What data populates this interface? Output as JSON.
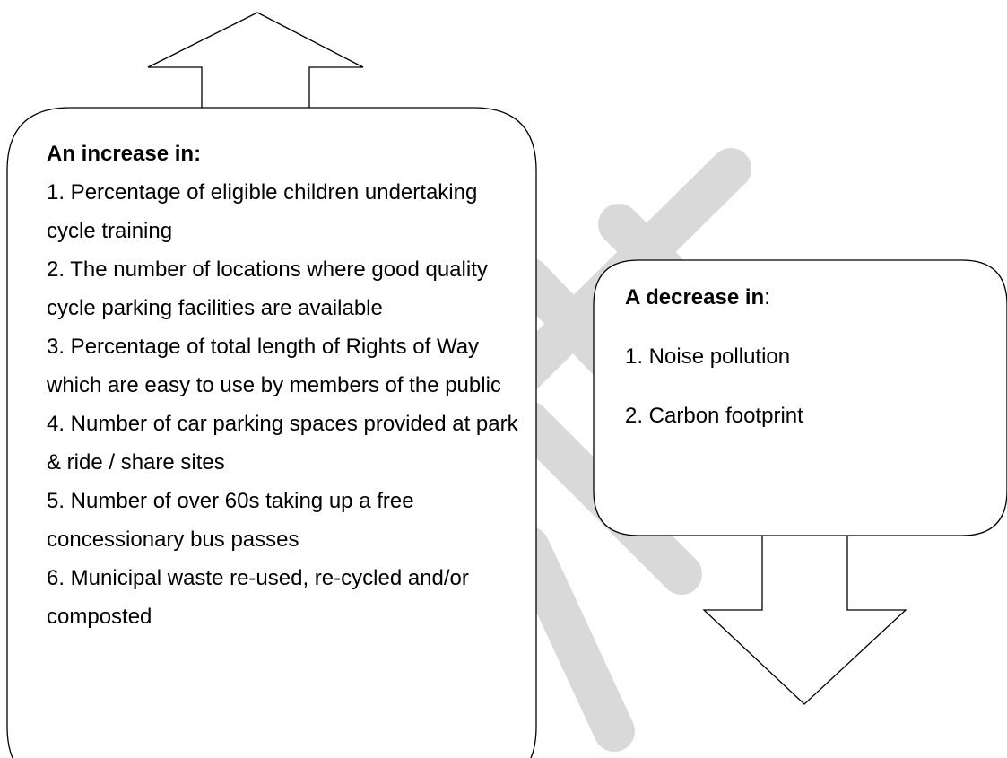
{
  "left_box": {
    "heading": "An increase in:",
    "items": [
      "1. Percentage of eligible children undertaking cycle training",
      "2. The number of locations where good quality cycle parking facilities are available",
      "3. Percentage of total length of Rights of Way which are easy to use by members of the public",
      "4. Number of car parking spaces provided at park & ride / share sites",
      "5. Number of over 60s taking up a free concessionary bus passes",
      "6. Municipal waste re-used, re-cycled and/or composted"
    ]
  },
  "right_box": {
    "heading": "A decrease in",
    "heading_suffix": ":",
    "items": [
      "1. Noise pollution",
      "2. Carbon footprint"
    ]
  }
}
